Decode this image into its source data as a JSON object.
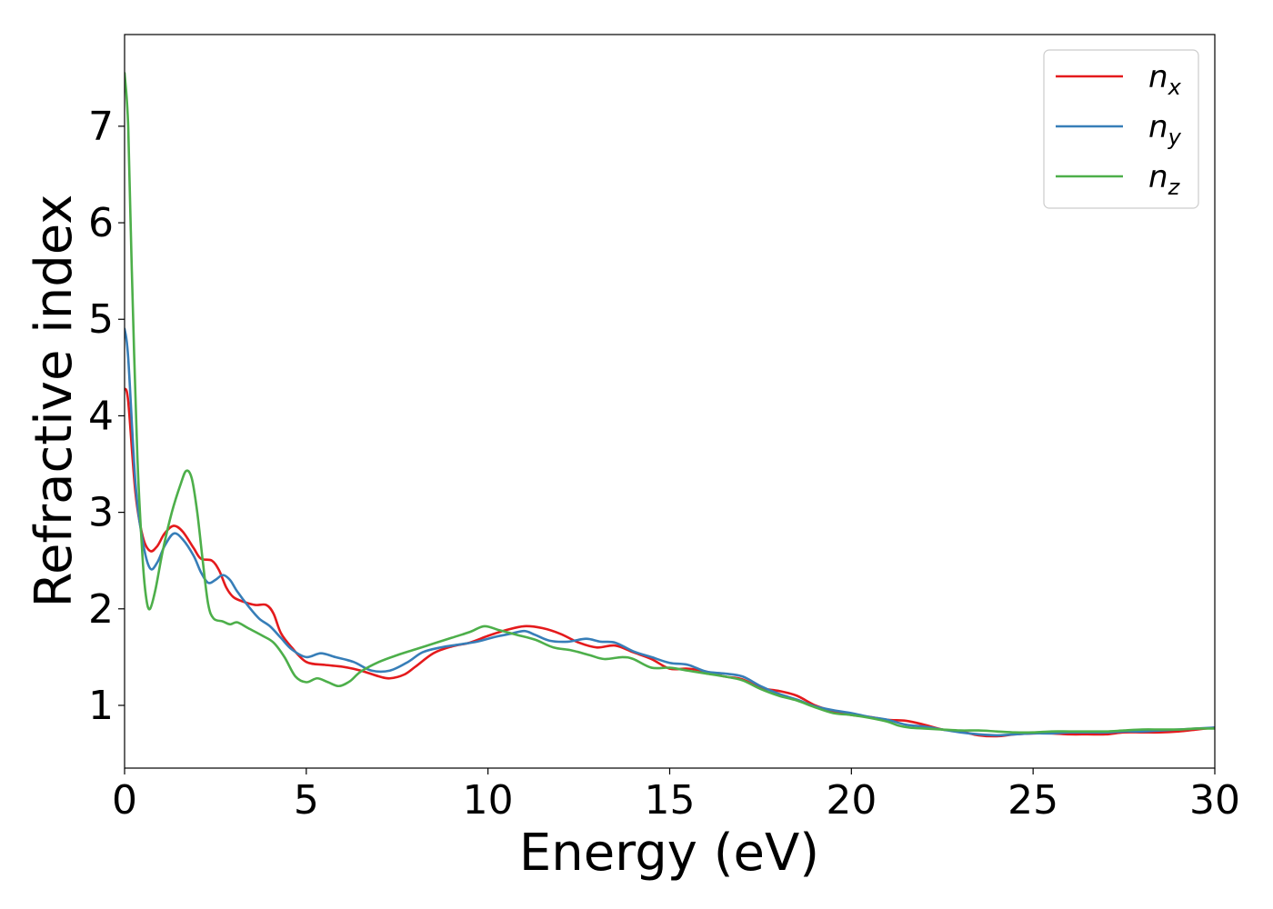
{
  "chart_data": {
    "type": "line",
    "title": "",
    "xlabel": "Energy (eV)",
    "ylabel": "Refractive index",
    "xlim": [
      0,
      30
    ],
    "ylim": [
      0.35,
      7.95
    ],
    "xticks": [
      0,
      5,
      10,
      15,
      20,
      25,
      30
    ],
    "yticks": [
      1,
      2,
      3,
      4,
      5,
      6,
      7
    ],
    "grid": false,
    "legend_position": "top-right",
    "series": [
      {
        "name": "n",
        "subscript": "x",
        "color": "#e41a1c",
        "points": [
          [
            0,
            4.28
          ],
          [
            0.1,
            4.15
          ],
          [
            0.3,
            3.2
          ],
          [
            0.5,
            2.75
          ],
          [
            0.7,
            2.6
          ],
          [
            0.9,
            2.65
          ],
          [
            1.1,
            2.78
          ],
          [
            1.35,
            2.86
          ],
          [
            1.6,
            2.8
          ],
          [
            1.9,
            2.63
          ],
          [
            2.1,
            2.52
          ],
          [
            2.4,
            2.5
          ],
          [
            2.6,
            2.4
          ],
          [
            2.8,
            2.22
          ],
          [
            3.0,
            2.12
          ],
          [
            3.3,
            2.07
          ],
          [
            3.6,
            2.04
          ],
          [
            3.9,
            2.04
          ],
          [
            4.1,
            1.95
          ],
          [
            4.3,
            1.75
          ],
          [
            4.6,
            1.6
          ],
          [
            5.0,
            1.45
          ],
          [
            5.5,
            1.42
          ],
          [
            6.0,
            1.4
          ],
          [
            6.5,
            1.36
          ],
          [
            7.0,
            1.3
          ],
          [
            7.3,
            1.28
          ],
          [
            7.7,
            1.32
          ],
          [
            8.0,
            1.4
          ],
          [
            8.5,
            1.54
          ],
          [
            9.0,
            1.61
          ],
          [
            9.5,
            1.65
          ],
          [
            10.0,
            1.72
          ],
          [
            10.5,
            1.78
          ],
          [
            11.0,
            1.82
          ],
          [
            11.5,
            1.8
          ],
          [
            12.0,
            1.74
          ],
          [
            12.5,
            1.65
          ],
          [
            13.0,
            1.6
          ],
          [
            13.5,
            1.62
          ],
          [
            14.0,
            1.55
          ],
          [
            14.5,
            1.48
          ],
          [
            15.0,
            1.38
          ],
          [
            15.5,
            1.38
          ],
          [
            16.0,
            1.35
          ],
          [
            16.5,
            1.3
          ],
          [
            17.0,
            1.27
          ],
          [
            17.5,
            1.18
          ],
          [
            18.0,
            1.15
          ],
          [
            18.5,
            1.1
          ],
          [
            19.0,
            1.0
          ],
          [
            19.5,
            0.94
          ],
          [
            20.0,
            0.9
          ],
          [
            20.5,
            0.88
          ],
          [
            21.0,
            0.85
          ],
          [
            21.5,
            0.84
          ],
          [
            22.0,
            0.8
          ],
          [
            22.5,
            0.75
          ],
          [
            23.0,
            0.73
          ],
          [
            23.5,
            0.69
          ],
          [
            24.0,
            0.68
          ],
          [
            24.5,
            0.7
          ],
          [
            25.0,
            0.71
          ],
          [
            25.5,
            0.71
          ],
          [
            26.0,
            0.7
          ],
          [
            26.5,
            0.7
          ],
          [
            27.0,
            0.7
          ],
          [
            27.5,
            0.72
          ],
          [
            28.0,
            0.72
          ],
          [
            28.5,
            0.72
          ],
          [
            29.0,
            0.73
          ],
          [
            29.5,
            0.75
          ],
          [
            30.0,
            0.77
          ]
        ]
      },
      {
        "name": "n",
        "subscript": "y",
        "color": "#377eb8",
        "points": [
          [
            0,
            4.9
          ],
          [
            0.1,
            4.6
          ],
          [
            0.3,
            3.3
          ],
          [
            0.5,
            2.7
          ],
          [
            0.7,
            2.42
          ],
          [
            0.9,
            2.48
          ],
          [
            1.1,
            2.65
          ],
          [
            1.35,
            2.78
          ],
          [
            1.6,
            2.72
          ],
          [
            1.9,
            2.55
          ],
          [
            2.1,
            2.38
          ],
          [
            2.3,
            2.27
          ],
          [
            2.5,
            2.3
          ],
          [
            2.7,
            2.35
          ],
          [
            2.9,
            2.3
          ],
          [
            3.1,
            2.18
          ],
          [
            3.4,
            2.03
          ],
          [
            3.7,
            1.9
          ],
          [
            4.0,
            1.82
          ],
          [
            4.3,
            1.7
          ],
          [
            4.6,
            1.58
          ],
          [
            5.0,
            1.5
          ],
          [
            5.4,
            1.54
          ],
          [
            5.8,
            1.5
          ],
          [
            6.3,
            1.45
          ],
          [
            6.8,
            1.36
          ],
          [
            7.3,
            1.36
          ],
          [
            7.8,
            1.45
          ],
          [
            8.2,
            1.55
          ],
          [
            8.7,
            1.6
          ],
          [
            9.2,
            1.63
          ],
          [
            9.7,
            1.66
          ],
          [
            10.2,
            1.71
          ],
          [
            10.6,
            1.74
          ],
          [
            11.0,
            1.77
          ],
          [
            11.3,
            1.73
          ],
          [
            11.7,
            1.67
          ],
          [
            12.2,
            1.66
          ],
          [
            12.7,
            1.69
          ],
          [
            13.1,
            1.66
          ],
          [
            13.5,
            1.65
          ],
          [
            14.0,
            1.56
          ],
          [
            14.5,
            1.5
          ],
          [
            15.0,
            1.44
          ],
          [
            15.5,
            1.42
          ],
          [
            16.0,
            1.35
          ],
          [
            16.5,
            1.33
          ],
          [
            17.0,
            1.3
          ],
          [
            17.5,
            1.2
          ],
          [
            18.0,
            1.12
          ],
          [
            18.5,
            1.06
          ],
          [
            19.0,
            0.99
          ],
          [
            19.5,
            0.95
          ],
          [
            20.0,
            0.92
          ],
          [
            20.5,
            0.88
          ],
          [
            21.0,
            0.85
          ],
          [
            21.5,
            0.8
          ],
          [
            22.0,
            0.78
          ],
          [
            22.5,
            0.75
          ],
          [
            23.0,
            0.72
          ],
          [
            23.5,
            0.7
          ],
          [
            24.0,
            0.69
          ],
          [
            24.5,
            0.7
          ],
          [
            25.0,
            0.71
          ],
          [
            25.5,
            0.71
          ],
          [
            26.0,
            0.72
          ],
          [
            26.5,
            0.72
          ],
          [
            27.0,
            0.72
          ],
          [
            27.5,
            0.73
          ],
          [
            28.0,
            0.73
          ],
          [
            28.5,
            0.74
          ],
          [
            29.0,
            0.75
          ],
          [
            29.5,
            0.76
          ],
          [
            30.0,
            0.77
          ]
        ]
      },
      {
        "name": "n",
        "subscript": "z",
        "color": "#4daf4a",
        "points": [
          [
            0,
            7.55
          ],
          [
            0.1,
            7.0
          ],
          [
            0.2,
            5.5
          ],
          [
            0.35,
            3.6
          ],
          [
            0.5,
            2.5
          ],
          [
            0.6,
            2.1
          ],
          [
            0.7,
            2.0
          ],
          [
            0.85,
            2.2
          ],
          [
            1.05,
            2.6
          ],
          [
            1.3,
            3.0
          ],
          [
            1.55,
            3.3
          ],
          [
            1.7,
            3.43
          ],
          [
            1.85,
            3.35
          ],
          [
            2.0,
            3.0
          ],
          [
            2.15,
            2.5
          ],
          [
            2.3,
            2.05
          ],
          [
            2.45,
            1.9
          ],
          [
            2.7,
            1.87
          ],
          [
            2.9,
            1.84
          ],
          [
            3.1,
            1.86
          ],
          [
            3.4,
            1.8
          ],
          [
            3.8,
            1.72
          ],
          [
            4.1,
            1.65
          ],
          [
            4.4,
            1.5
          ],
          [
            4.7,
            1.3
          ],
          [
            5.0,
            1.24
          ],
          [
            5.3,
            1.28
          ],
          [
            5.6,
            1.24
          ],
          [
            5.9,
            1.2
          ],
          [
            6.2,
            1.25
          ],
          [
            6.5,
            1.35
          ],
          [
            7.0,
            1.45
          ],
          [
            7.5,
            1.52
          ],
          [
            8.0,
            1.58
          ],
          [
            8.5,
            1.64
          ],
          [
            9.0,
            1.7
          ],
          [
            9.5,
            1.76
          ],
          [
            9.9,
            1.82
          ],
          [
            10.3,
            1.78
          ],
          [
            10.8,
            1.73
          ],
          [
            11.3,
            1.68
          ],
          [
            11.8,
            1.6
          ],
          [
            12.3,
            1.57
          ],
          [
            12.8,
            1.52
          ],
          [
            13.2,
            1.48
          ],
          [
            13.7,
            1.5
          ],
          [
            14.0,
            1.48
          ],
          [
            14.5,
            1.39
          ],
          [
            15.0,
            1.39
          ],
          [
            15.5,
            1.36
          ],
          [
            16.0,
            1.33
          ],
          [
            16.5,
            1.3
          ],
          [
            17.0,
            1.26
          ],
          [
            17.5,
            1.17
          ],
          [
            18.0,
            1.1
          ],
          [
            18.5,
            1.05
          ],
          [
            19.0,
            0.98
          ],
          [
            19.5,
            0.92
          ],
          [
            20.0,
            0.9
          ],
          [
            20.5,
            0.87
          ],
          [
            21.0,
            0.83
          ],
          [
            21.3,
            0.79
          ],
          [
            21.6,
            0.77
          ],
          [
            22.0,
            0.76
          ],
          [
            22.5,
            0.75
          ],
          [
            23.0,
            0.74
          ],
          [
            23.5,
            0.74
          ],
          [
            24.0,
            0.73
          ],
          [
            24.5,
            0.72
          ],
          [
            25.0,
            0.72
          ],
          [
            25.5,
            0.73
          ],
          [
            26.0,
            0.73
          ],
          [
            26.5,
            0.73
          ],
          [
            27.0,
            0.73
          ],
          [
            27.5,
            0.74
          ],
          [
            28.0,
            0.75
          ],
          [
            28.5,
            0.75
          ],
          [
            29.0,
            0.75
          ],
          [
            29.5,
            0.76
          ],
          [
            30.0,
            0.76
          ]
        ]
      }
    ]
  }
}
